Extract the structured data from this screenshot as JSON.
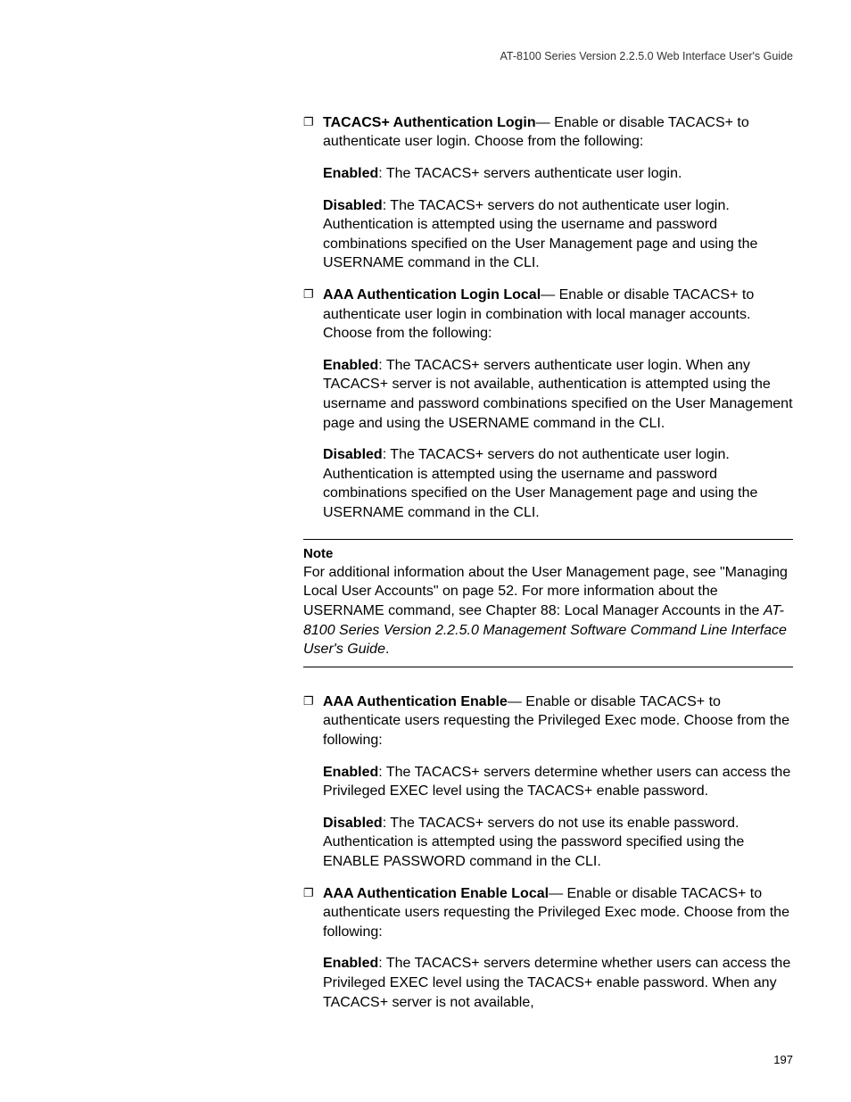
{
  "header": {
    "running_head": "AT-8100 Series Version 2.2.5.0 Web Interface User's Guide"
  },
  "items": [
    {
      "lead_bold": "TACACS+ Authentication Login",
      "lead_rest": "— Enable or disable TACACS+ to authenticate user login. Choose from the following:",
      "subs": [
        {
          "bold": "Enabled",
          "rest": ": The TACACS+ servers authenticate user login."
        },
        {
          "bold": "Disabled",
          "rest": ": The TACACS+ servers do not authenticate user login. Authentication is attempted using the username and password combinations specified on the User Management page and using the USERNAME command in the CLI."
        }
      ]
    },
    {
      "lead_bold": "AAA Authentication Login Local",
      "lead_rest": "— Enable or disable TACACS+ to authenticate user login in combination with local manager accounts. Choose from the following:",
      "subs": [
        {
          "bold": "Enabled",
          "rest": ": The TACACS+ servers authenticate user login. When any TACACS+ server is not available, authentication is attempted using the username and password combinations specified on the User Management page and using the USERNAME command in the CLI."
        },
        {
          "bold": "Disabled",
          "rest": ": The TACACS+ servers do not authenticate user login. Authentication is attempted using the username and password combinations specified on the User Management page and using the USERNAME command in the CLI."
        }
      ]
    }
  ],
  "note": {
    "label": "Note",
    "body_pre": "For additional information about the User Management page, see \"Managing Local User Accounts\" on page 52. For more information about the USERNAME command, see Chapter 88: Local Manager Accounts in the ",
    "body_italic": "AT-8100 Series Version 2.2.5.0 Management Software Command Line Interface User's Guide",
    "body_post": "."
  },
  "items2": [
    {
      "lead_bold": "AAA Authentication Enable",
      "lead_rest": "— Enable or disable TACACS+ to authenticate users requesting the Privileged Exec mode. Choose from the following:",
      "subs": [
        {
          "bold": "Enabled",
          "rest": ": The TACACS+ servers determine whether users can access the Privileged EXEC level using the TACACS+ enable password."
        },
        {
          "bold": "Disabled",
          "rest": ": The TACACS+ servers do not use its enable password. Authentication is attempted using the password specified using the ENABLE PASSWORD command in the CLI."
        }
      ]
    },
    {
      "lead_bold": "AAA Authentication Enable Local",
      "lead_rest": "— Enable or disable TACACS+ to authenticate users requesting the Privileged Exec mode. Choose from the following:",
      "subs": [
        {
          "bold": "Enabled",
          "rest": ": The TACACS+ servers determine whether users can access the Privileged EXEC level using the TACACS+ enable password. When any TACACS+ server is not available,"
        }
      ]
    }
  ],
  "page_number": "197"
}
